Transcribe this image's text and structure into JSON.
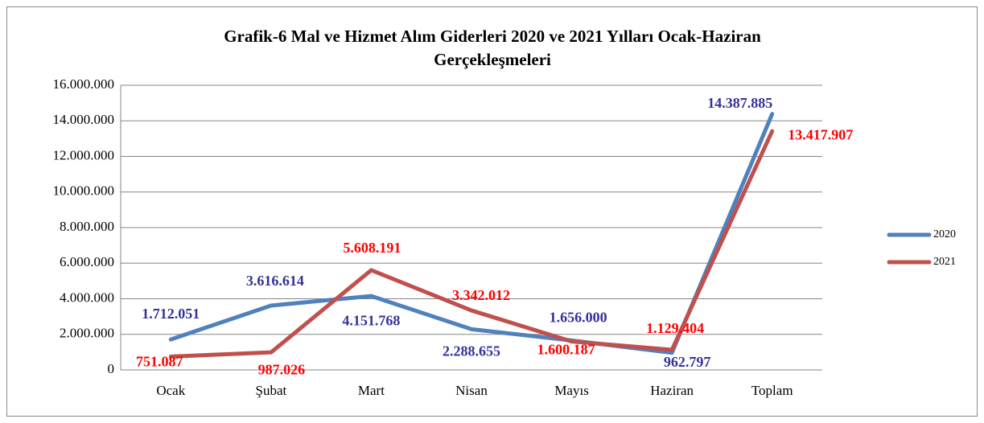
{
  "chart_data": {
    "type": "line",
    "title": [
      "Grafik-6  Mal ve Hizmet Alım Giderleri 2020 ve 2021 Yılları Ocak-Haziran",
      "Gerçekleşmeleri"
    ],
    "categories": [
      "Ocak",
      "Şubat",
      "Mart",
      "Nisan",
      "Mayıs",
      "Haziran",
      "Toplam"
    ],
    "series": [
      {
        "name": "2020",
        "color": "#4f81bd",
        "label_color": "#333399",
        "values": [
          1712051,
          3616614,
          4151768,
          2288655,
          1656000,
          962797,
          14387885
        ],
        "value_labels": [
          "1.712.051",
          "3.616.614",
          "4.151.768",
          "2.288.655",
          "1.656.000",
          "962.797",
          "14.387.885"
        ]
      },
      {
        "name": "2021",
        "color": "#c0504d",
        "label_color": "#ff0000",
        "values": [
          751087,
          987026,
          5608191,
          3342012,
          1600187,
          1129404,
          13417907
        ],
        "value_labels": [
          "751.087",
          "987.026",
          "5.608.191",
          "3.342.012",
          "1.600.187",
          "1.129.404",
          "13.417.907"
        ]
      }
    ],
    "ylim": [
      0,
      16000000
    ],
    "yticks": [
      0,
      {
        "value": 2000000,
        "label": "2.000.000"
      },
      {
        "value": 4000000,
        "label": "4.000.000"
      },
      {
        "value": 6000000,
        "label": "6.000.000"
      },
      {
        "value": 8000000,
        "label": "8.000.000"
      },
      {
        "value": 10000000,
        "label": "10.000.000"
      },
      {
        "value": 12000000,
        "label": "12.000.000"
      },
      {
        "value": 14000000,
        "label": "14.000.000"
      },
      {
        "value": 16000000,
        "label": "16.000.000"
      }
    ],
    "grid": true,
    "legend": "right"
  }
}
